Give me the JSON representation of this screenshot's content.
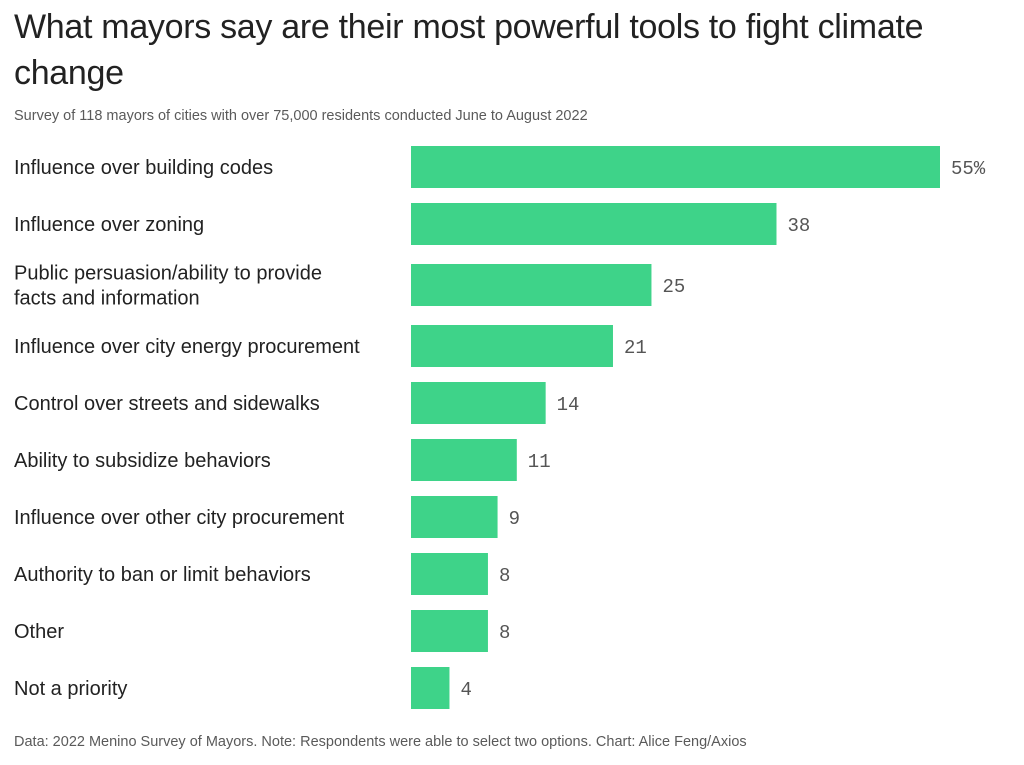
{
  "title": "What mayors say are their most powerful tools to fight climate change",
  "subtitle": "Survey of 118 mayors of cities with over 75,000 residents conducted June to August 2022",
  "footer": "Data: 2022 Menino Survey of Mayors. Note: Respondents were able to select two options. Chart: Alice Feng/Axios",
  "colors": {
    "bar": "#3ed389",
    "text": "#222222",
    "muted": "#555555"
  },
  "chart_data": {
    "type": "bar",
    "orientation": "horizontal",
    "unit": "%",
    "categories": [
      [
        "Influence over building codes"
      ],
      [
        "Influence over zoning"
      ],
      [
        "Public persuasion/ability to provide",
        "facts and information"
      ],
      [
        "Influence over city energy procurement"
      ],
      [
        "Control over streets and sidewalks"
      ],
      [
        "Ability to subsidize behaviors"
      ],
      [
        "Influence over other city procurement"
      ],
      [
        "Authority to ban or limit behaviors"
      ],
      [
        "Other"
      ],
      [
        "Not a priority"
      ]
    ],
    "values": [
      55,
      38,
      25,
      21,
      14,
      11,
      9,
      8,
      8,
      4
    ],
    "value_labels": [
      "55%",
      "38",
      "25",
      "21",
      "14",
      "11",
      "9",
      "8",
      "8",
      "4"
    ],
    "xlim": [
      0,
      55
    ],
    "grid": false,
    "legend": "none"
  }
}
